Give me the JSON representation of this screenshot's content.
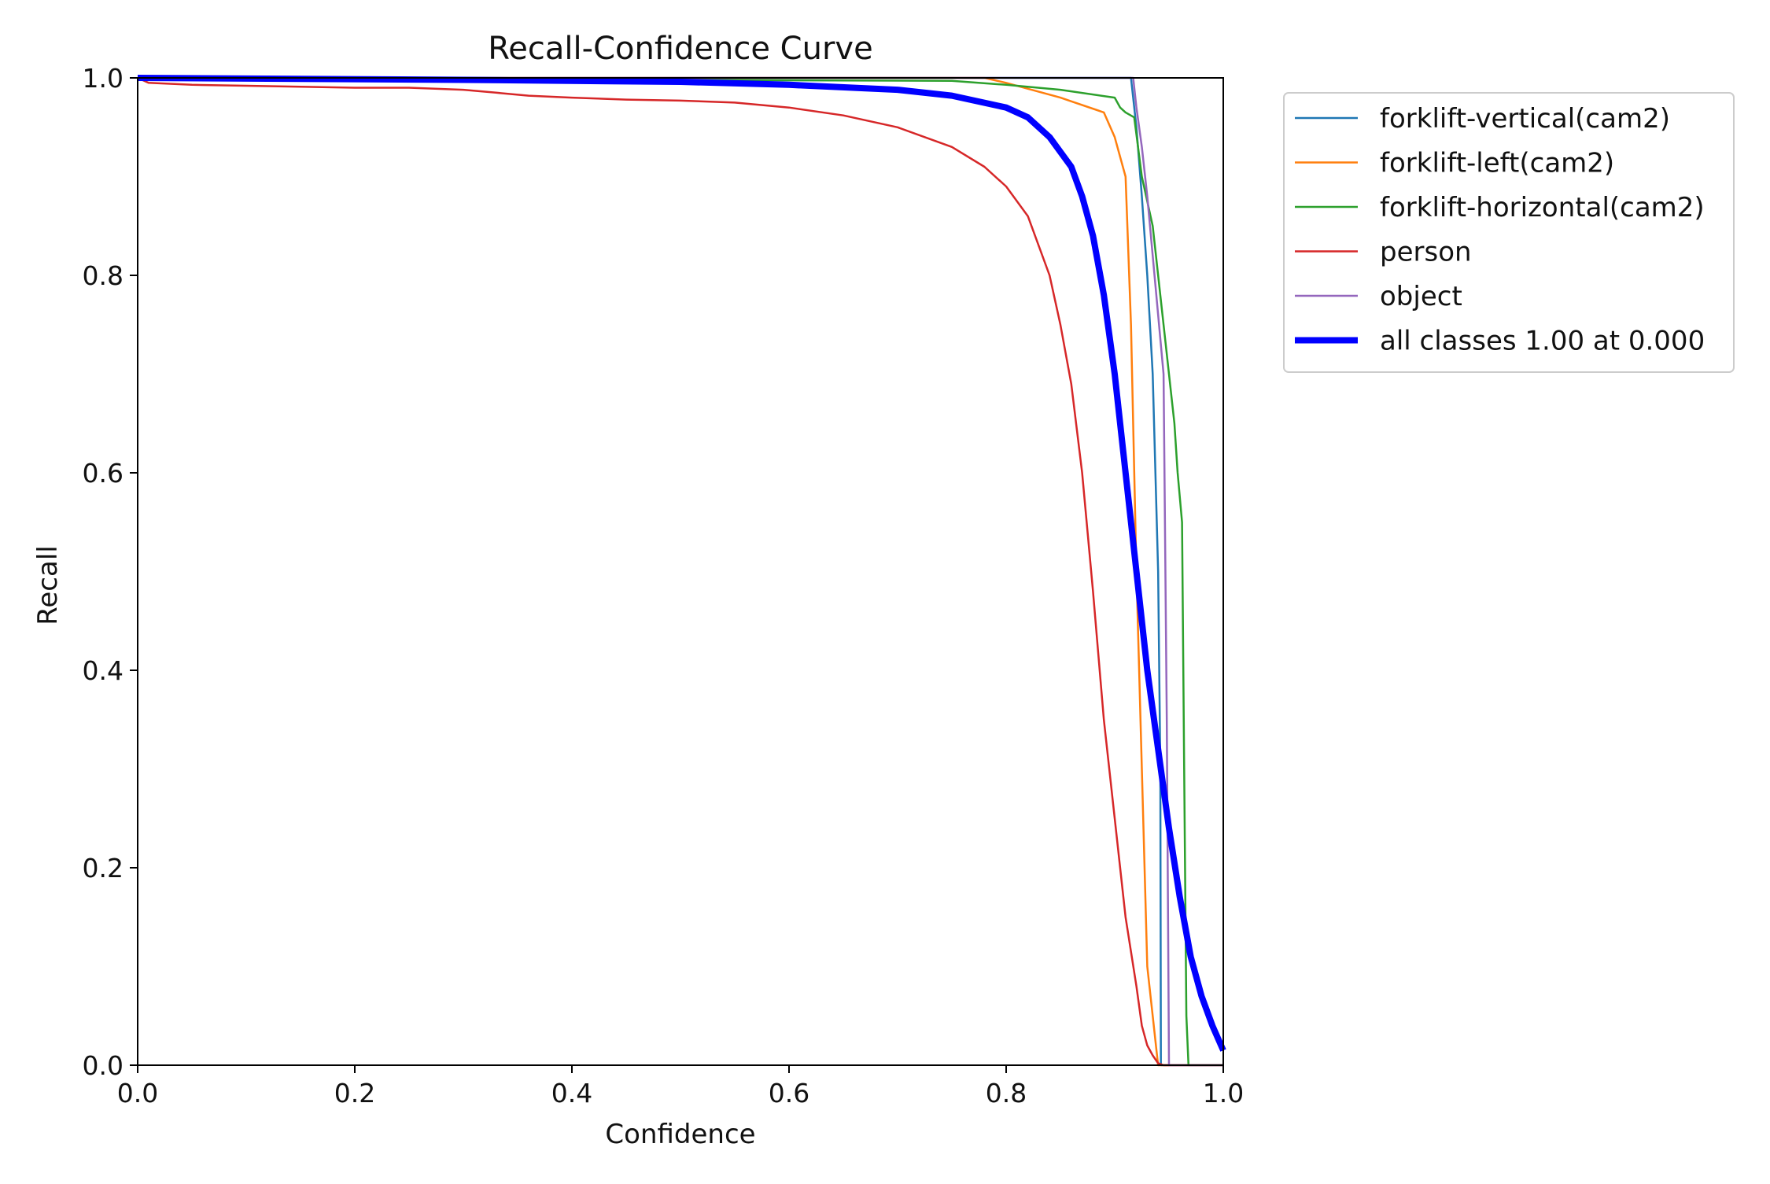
{
  "chart_data": {
    "type": "line",
    "title": "Recall-Confidence Curve",
    "xlabel": "Confidence",
    "ylabel": "Recall",
    "xlim": [
      0.0,
      1.0
    ],
    "ylim": [
      0.0,
      1.0
    ],
    "xticks": [
      "0.0",
      "0.2",
      "0.4",
      "0.6",
      "0.8",
      "1.0"
    ],
    "yticks": [
      "0.0",
      "0.2",
      "0.4",
      "0.6",
      "0.8",
      "1.0"
    ],
    "grid": false,
    "legend_position": "upper-right-outside",
    "series": [
      {
        "name": "forklift-vertical(cam2)",
        "color": "#1f77b4",
        "x": [
          0.0,
          0.915,
          0.92,
          0.925,
          0.93,
          0.935,
          0.94,
          0.942,
          0.9425,
          1.0
        ],
        "y": [
          1.0,
          1.0,
          0.95,
          0.88,
          0.8,
          0.7,
          0.5,
          0.3,
          0.0,
          0.0
        ]
      },
      {
        "name": "forklift-left(cam2)",
        "color": "#ff7f0e",
        "x": [
          0.0,
          0.78,
          0.8,
          0.85,
          0.89,
          0.9,
          0.91,
          0.915,
          0.92,
          0.925,
          0.93,
          0.935,
          0.938,
          0.94,
          1.0
        ],
        "y": [
          1.0,
          1.0,
          0.995,
          0.98,
          0.965,
          0.94,
          0.9,
          0.75,
          0.5,
          0.3,
          0.1,
          0.05,
          0.02,
          0.0,
          0.0
        ]
      },
      {
        "name": "forklift-horizontal(cam2)",
        "color": "#2ca02c",
        "x": [
          0.0,
          0.75,
          0.8,
          0.85,
          0.9,
          0.905,
          0.91,
          0.918,
          0.925,
          0.935,
          0.945,
          0.955,
          0.958,
          0.962,
          0.964,
          0.966,
          0.968,
          1.0
        ],
        "y": [
          1.0,
          0.997,
          0.993,
          0.988,
          0.98,
          0.97,
          0.965,
          0.96,
          0.9,
          0.85,
          0.75,
          0.65,
          0.6,
          0.55,
          0.3,
          0.05,
          0.0,
          0.0
        ]
      },
      {
        "name": "person",
        "color": "#d62728",
        "x": [
          0.0,
          0.01,
          0.05,
          0.1,
          0.15,
          0.2,
          0.25,
          0.3,
          0.33,
          0.36,
          0.4,
          0.45,
          0.5,
          0.55,
          0.6,
          0.65,
          0.7,
          0.75,
          0.78,
          0.8,
          0.82,
          0.84,
          0.85,
          0.86,
          0.87,
          0.88,
          0.89,
          0.9,
          0.91,
          0.92,
          0.925,
          0.93,
          0.935,
          0.94,
          0.945,
          1.0
        ],
        "y": [
          1.0,
          0.995,
          0.993,
          0.992,
          0.991,
          0.99,
          0.99,
          0.988,
          0.985,
          0.982,
          0.98,
          0.978,
          0.977,
          0.975,
          0.97,
          0.962,
          0.95,
          0.93,
          0.91,
          0.89,
          0.86,
          0.8,
          0.75,
          0.69,
          0.6,
          0.48,
          0.35,
          0.25,
          0.15,
          0.08,
          0.04,
          0.02,
          0.01,
          0.002,
          0.0,
          0.0
        ]
      },
      {
        "name": "object",
        "color": "#9467bd",
        "x": [
          0.0,
          0.917,
          0.92,
          0.925,
          0.93,
          0.935,
          0.94,
          0.945,
          0.948,
          0.95,
          1.0
        ],
        "y": [
          1.0,
          1.0,
          0.97,
          0.93,
          0.88,
          0.82,
          0.76,
          0.7,
          0.35,
          0.0,
          0.0
        ]
      },
      {
        "name": "all classes 1.00 at 0.000",
        "color": "#0000ff",
        "bold": true,
        "x": [
          0.0,
          0.3,
          0.5,
          0.6,
          0.7,
          0.75,
          0.8,
          0.82,
          0.84,
          0.86,
          0.87,
          0.88,
          0.89,
          0.9,
          0.91,
          0.92,
          0.93,
          0.94,
          0.95,
          0.96,
          0.97,
          0.98,
          0.99,
          1.0
        ],
        "y": [
          1.0,
          0.998,
          0.996,
          0.993,
          0.988,
          0.982,
          0.97,
          0.96,
          0.94,
          0.91,
          0.88,
          0.84,
          0.78,
          0.7,
          0.6,
          0.5,
          0.4,
          0.32,
          0.24,
          0.17,
          0.11,
          0.07,
          0.04,
          0.015
        ]
      }
    ]
  }
}
